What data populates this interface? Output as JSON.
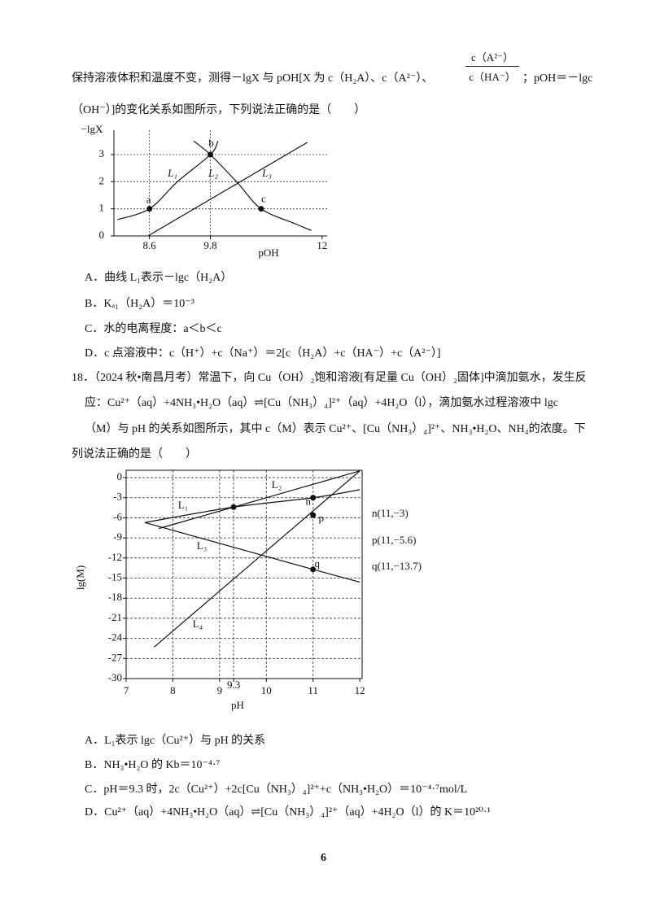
{
  "q17": {
    "stem_1": "保持溶液体积和温度不变，测得－lgX 与 pOH[X 为 c（H₂A）、c（A²⁻）、",
    "frac_num": "c（A²⁻）",
    "frac_den": "c（HA⁻）",
    "stem_1_end": "；pOH＝－lgc",
    "stem_2": "（OH⁻）]的变化关系如图所示，下列说法正确的是（　　）",
    "options": [
      "A．曲线 L₁表示－lgc（H₂A）",
      "B．Kₐ₁（H₂A）＝10⁻³",
      "C．水的电离程度：a＜b＜c",
      "D．c 点溶液中：c（H⁺）+c（Na⁺）＝2[c（H₂A）+c（HA⁻）+c（A²⁻）]"
    ]
  },
  "q18": {
    "stem": [
      "18．（2024 秋•南昌月考）常温下，向 Cu（OH）₂饱和溶液[有足量 Cu（OH）₂固体]中滴加氨水，发生反",
      "应：Cu²⁺（aq）+4NH₃•H₂O（aq）⇌[Cu（NH₃）₄]²⁺（aq）+4H₂O（l），滴加氨水过程溶液中 lgc",
      "（M）与 pH 的关系如图所示，其中 c（M）表示 Cu²⁺、[Cu（NH₃）₄]²⁺、NH₃•H₂O、NH₄的浓度。下",
      "列说法正确的是（　　）"
    ],
    "options": [
      "A．L₁表示 lgc（Cu²⁺）与 pH 的关系",
      "B．NH₃•H₂O 的 Kb＝10⁻⁴·⁷",
      "C．pH＝9.3 时，2c（Cu²⁺）+2c[Cu（NH₃）₄]²⁺+c（NH₃•H₂O）＝10⁻⁴·⁷mol/L",
      "D．Cu²⁺（aq）+4NH₃•H₂O（aq）⇌[Cu（NH₃）₄]²⁺（aq）+4H₂O（l）的 K＝10²⁰·¹"
    ]
  },
  "page_number": 6,
  "chart_data": [
    {
      "type": "line",
      "y_label": "−lgX",
      "x_label": "pOH",
      "xlim": [
        7.9,
        12.1
      ],
      "ylim": [
        0,
        3.9
      ],
      "xticks": [
        8.6,
        9.8,
        12
      ],
      "yticks": [
        0,
        1,
        2,
        3
      ],
      "grid": true,
      "color": "#111111",
      "series": [
        {
          "name": "L₁",
          "x": [
            7.97,
            8.6,
            9.15,
            9.8,
            9.95
          ],
          "values": [
            0.6,
            1,
            2,
            3,
            3.5
          ]
        },
        {
          "name": "L₂",
          "x": [
            9.47,
            9.8,
            10.34,
            10.8,
            11.47,
            11.79
          ],
          "values": [
            3.5,
            3,
            1.95,
            1,
            0.45,
            0.2
          ]
        },
        {
          "name": "L₃",
          "x": [
            8.57,
            11.71
          ],
          "values": [
            0,
            3.45
          ]
        }
      ],
      "points": [
        {
          "label": "a",
          "x": 8.6,
          "y": 1
        },
        {
          "label": "b",
          "x": 9.8,
          "y": 3
        },
        {
          "label": "c",
          "x": 10.8,
          "y": 1
        }
      ]
    },
    {
      "type": "line",
      "y_label": "lg(M)",
      "x_label": "pH",
      "xlim": [
        7,
        12.05
      ],
      "ylim": [
        -30,
        1.1
      ],
      "xticks": [
        7,
        8,
        9,
        9.3,
        10,
        11,
        12
      ],
      "yticks": [
        0,
        -3,
        -6,
        -9,
        -12,
        -15,
        -18,
        -21,
        -24,
        -27,
        -30
      ],
      "grid": true,
      "color": "#111111",
      "series": [
        {
          "name": "L₁",
          "x": [
            7.4,
            9.3,
            11,
            12
          ],
          "values": [
            -6.7,
            -4.4,
            -3,
            -1.8
          ]
        },
        {
          "name": "L₂",
          "x": [
            7.7,
            9.3,
            12
          ],
          "values": [
            -7.6,
            -4.4,
            1
          ]
        },
        {
          "name": "L₃",
          "x": [
            7.4,
            11,
            12
          ],
          "values": [
            -6.7,
            -13.7,
            -15.6
          ]
        },
        {
          "name": "L₄",
          "x": [
            7.6,
            12
          ],
          "values": [
            -25.3,
            1
          ]
        }
      ],
      "points": [
        {
          "x": 9.3,
          "y": -4.4
        },
        {
          "label": "n",
          "x": 11,
          "y": -3,
          "annotation": "n(11,−3)"
        },
        {
          "label": "p",
          "x": 11,
          "y": -5.6,
          "annotation": "p(11,−5.6)"
        },
        {
          "label": "q",
          "x": 11,
          "y": -13.7,
          "annotation": "q(11,−13.7)"
        }
      ]
    }
  ]
}
